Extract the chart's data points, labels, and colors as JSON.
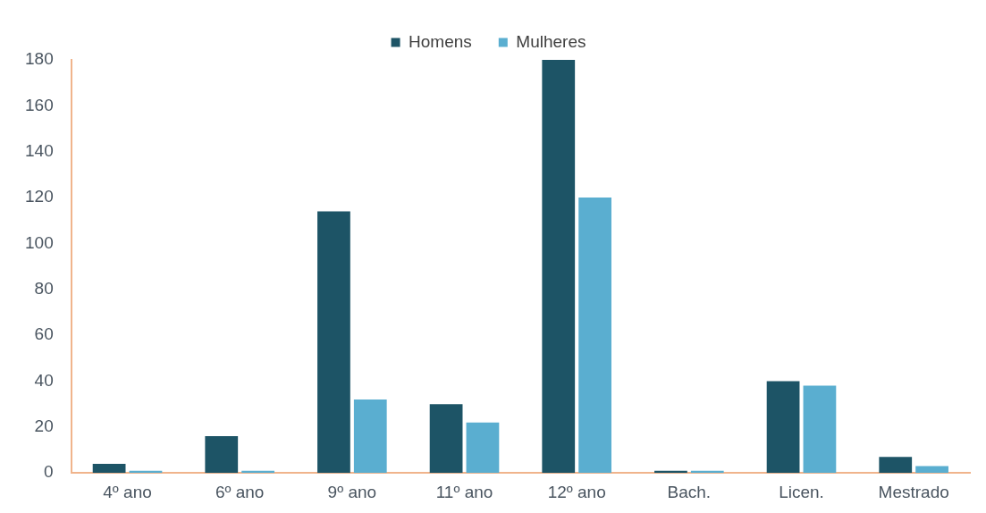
{
  "chart_data": {
    "type": "bar",
    "categories": [
      "4º ano",
      "6º ano",
      "9º ano",
      "11º ano",
      "12º ano",
      "Bach.",
      "Licen.",
      "Mestrado"
    ],
    "series": [
      {
        "name": "Homens",
        "color": "#1d5466",
        "values": [
          4,
          16,
          114,
          30,
          180,
          1,
          40,
          7
        ]
      },
      {
        "name": "Mulheres",
        "color": "#5aaed0",
        "values": [
          1,
          1,
          32,
          22,
          120,
          1,
          38,
          3
        ]
      }
    ],
    "ylim": [
      0,
      180
    ],
    "yticks": [
      0,
      20,
      40,
      60,
      80,
      100,
      120,
      140,
      160,
      180
    ],
    "grid": false,
    "legend": "top"
  }
}
